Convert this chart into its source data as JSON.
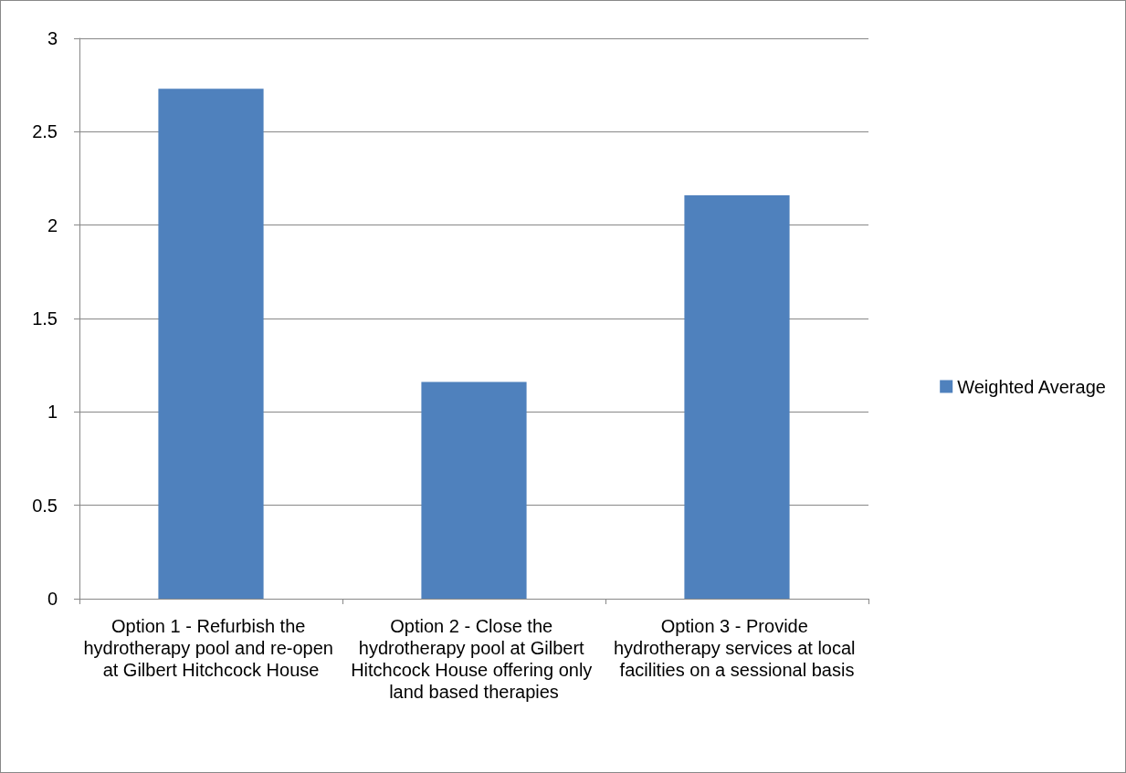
{
  "chart_data": {
    "type": "bar",
    "categories": [
      "Option 1 - Refurbish the hydrotherapy pool and re-open at Gilbert Hitchcock House",
      "Option 2 - Close the hydrotherapy pool at Gilbert Hitchcock House offering only land based therapies",
      "Option 3 - Provide hydrotherapy services at local facilities on a sessional basis"
    ],
    "series": [
      {
        "name": "Weighted Average",
        "color": "#4f81bd",
        "values": [
          2.73,
          1.16,
          2.16
        ]
      }
    ],
    "ylim": [
      0,
      3
    ],
    "yticks": [
      0,
      0.5,
      1,
      1.5,
      2,
      2.5,
      3
    ],
    "grid": "y",
    "legend": "right"
  }
}
